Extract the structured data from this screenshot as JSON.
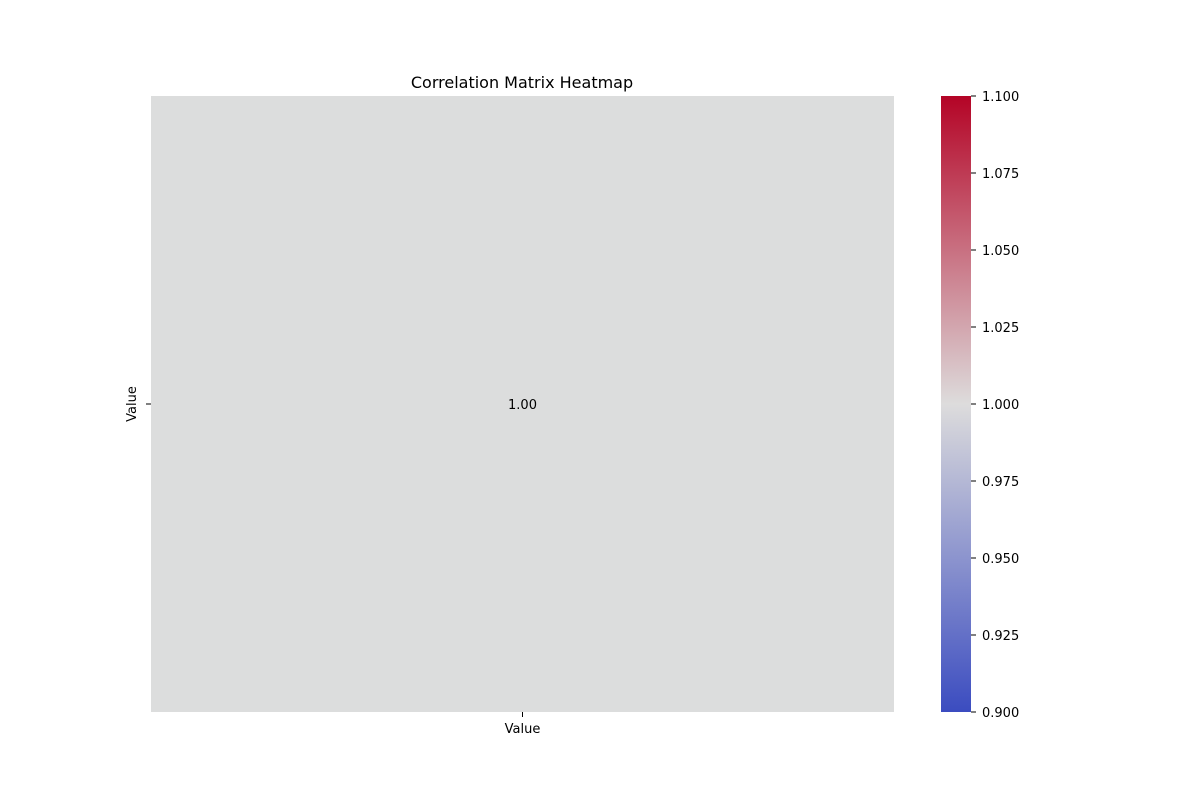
{
  "chart_data": {
    "type": "heatmap",
    "title": "Correlation Matrix Heatmap",
    "x_categories": [
      "Value"
    ],
    "y_categories": [
      "Value"
    ],
    "values": [
      [
        1.0
      ]
    ],
    "annotations": [
      [
        "1.00"
      ]
    ],
    "colormap": "coolwarm",
    "colorbar": {
      "vmin": 0.9,
      "vmax": 1.1,
      "ticks": [
        0.9,
        0.925,
        0.95,
        0.975,
        1.0,
        1.025,
        1.05,
        1.075,
        1.1
      ],
      "tick_labels": [
        "0.900",
        "0.925",
        "0.950",
        "0.975",
        "1.000",
        "1.025",
        "1.050",
        "1.075",
        "1.100"
      ],
      "colors": {
        "low": "#3b4cc0",
        "mid": "#dddcdc",
        "high": "#b40426"
      }
    },
    "cell_color": "#dcdddd",
    "grid": false,
    "legend": "none"
  }
}
